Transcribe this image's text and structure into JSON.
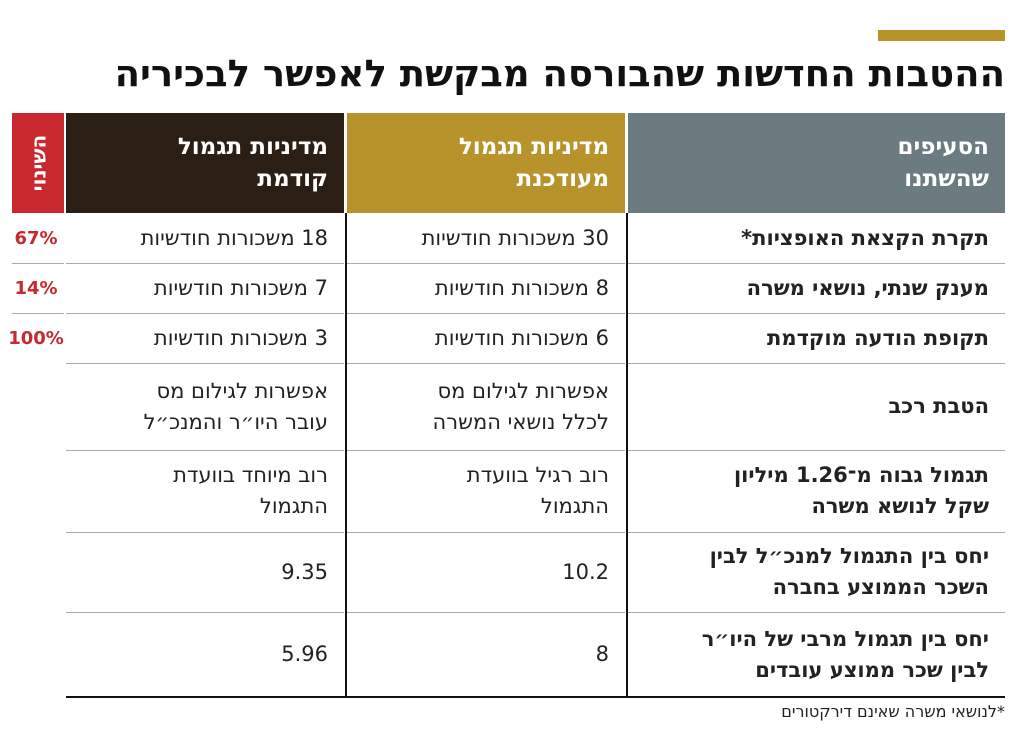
{
  "header": {
    "title": "ההטבות החדשות שהבורסה מבקשת לאפשר לבכיריה"
  },
  "table": {
    "columns": {
      "item": [
        "הסעיפים",
        "שהשתנו"
      ],
      "updated": [
        "מדיניות תגמול",
        "מעודכנת"
      ],
      "previous": [
        "מדיניות תגמול",
        "קודמת"
      ],
      "change": "השינוי"
    },
    "rows": [
      {
        "item": [
          "תקרת הקצאת האופציות*"
        ],
        "updated": [
          "30 משכורות חודשיות"
        ],
        "previous": [
          "18 משכורות חודשיות"
        ],
        "change": "67%"
      },
      {
        "item": [
          "מענק שנתי, נושאי משרה"
        ],
        "updated": [
          "8 משכורות חודשיות"
        ],
        "previous": [
          "7 משכורות חודשיות"
        ],
        "change": "14%"
      },
      {
        "item": [
          "תקופת הודעה מוקדמת"
        ],
        "updated": [
          "6 משכורות חודשיות"
        ],
        "previous": [
          "3 משכורות חודשיות"
        ],
        "change": "100%"
      },
      {
        "item": [
          "הטבת רכב"
        ],
        "updated": [
          "אפשרות לגילום מס",
          "לכלל נושאי המשרה"
        ],
        "previous": [
          "אפשרות לגילום מס",
          "עובר היו״ר והמנכ״ל"
        ]
      },
      {
        "item": [
          "תגמול גבוה מ־1.26 מיליון",
          "שקל לנושא משרה"
        ],
        "updated": [
          "רוב רגיל בוועדת",
          "התגמול"
        ],
        "previous": [
          "רוב מיוחד בוועדת",
          "התגמול"
        ]
      },
      {
        "item": [
          "יחס בין התגמול למנכ״ל לבין",
          "השכר הממוצע בחברה"
        ],
        "updated": [
          10.2
        ],
        "previous": [
          9.35
        ]
      },
      {
        "item": [
          "יחס בין תגמול מרבי של היו״ר",
          "לבין שכר ממוצע עובדים"
        ],
        "updated": [
          8
        ],
        "previous": [
          5.96
        ]
      }
    ]
  },
  "footnote": "*לנושאי משרה שאינם דירקטורים"
}
